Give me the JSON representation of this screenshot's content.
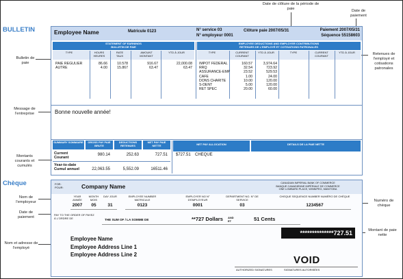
{
  "bulletin": {
    "title": "BULLETIN",
    "callouts": {
      "closing_date": "Date de clôture de la période de paie",
      "pay_date": "Date de paiement",
      "bulletin_de_paie": "Bulletin de paie",
      "retenues": "Retenues de l'employé et cotisations patronales",
      "message": "Message de l'entreprise",
      "montants": "Montants courants et cumulés"
    },
    "header": {
      "employee_name": "Employee Name",
      "matricule": "Matricule  0123",
      "service": "N° service 03",
      "employeur": "N° employeur 0001",
      "cloture": "Clôture paie  2007/05/31",
      "paiement": "Paiement 2007/05/31",
      "sequence": "Séquence 55158603"
    },
    "earnings": {
      "title1": "STATEMENT OF EARNINGS",
      "title2": "BULLETIN DE PAIE",
      "headers": [
        "TYPE",
        "HOURS HEURES",
        "RATE TAUX",
        "AMOUNT MONTANT",
        "YTD À JOUR"
      ],
      "rows": [
        {
          "type": "PAIE REGULIER",
          "hours": "86.66",
          "rate": "10.578",
          "amount": "916.67",
          "ytd": "22,000.08"
        },
        {
          "type": "AUTRE",
          "hours": "4.00",
          "rate": "15.867",
          "amount": "63.47",
          "ytd": "63.47"
        }
      ]
    },
    "deductions": {
      "title1": "EMPLOYEE DEDUCTIONS AND EMPLOYER CONTRIBUTIONS",
      "title2": "RETENUES DE L'EMPLOYÉ ET COTISATIONS PATRONALES",
      "headers": [
        "TYPE",
        "CURRENT COURANT",
        "YTD À JOUR",
        "TYPE",
        "CURRENT COURANT",
        "YTD À JOUR"
      ],
      "rows": [
        {
          "type": "IMPOT FEDERAL",
          "current": "160.57",
          "ytd": "3,974.64"
        },
        {
          "type": "RRQ",
          "current": "32.54",
          "ytd": "723.92"
        },
        {
          "type": "ASSURANCE-EMP",
          "current": "23.52",
          "ytd": "529.53"
        },
        {
          "type": "CAFE",
          "current": "1.00",
          "ytd": "24.00"
        },
        {
          "type": "DONS CHARITE",
          "current": "10.00",
          "ytd": "120.00"
        },
        {
          "type": "S-DENT",
          "current": "5.00",
          "ytd": "120.00"
        },
        {
          "type": "RET SPEC",
          "current": "20.00",
          "ytd": "60.00"
        }
      ]
    },
    "message": "Bonne nouvelle année!",
    "summary": {
      "headers": [
        "SUMMARY SOMMAIRE",
        "GROSS PAY PAIE BRUTE",
        "DEDUCTIONS RETENUES",
        "NET PAY PAIE NETTE",
        "NET PAY ALLOCATION",
        "DETAILS DE LA PAIE NETTE"
      ],
      "current_label1": "Current",
      "current_label2": "Courant",
      "current": {
        "gross": "980.14",
        "deductions": "252.63",
        "net": "727.51"
      },
      "ytd_label1": "Year-to-date",
      "ytd_label2": "Cumul annuel",
      "ytd": {
        "gross": "22,063.55",
        "deductions": "5,552.09",
        "net": "16511.46"
      },
      "allocation_amount": "$727.51",
      "allocation_type": "CHEQUE"
    }
  },
  "cheque": {
    "title": "Chèque",
    "callouts": {
      "nom_employeur": "Nom de l'employeur",
      "date_paiement": "Date de paiement",
      "nom_adresse": "Nom et adresse de l'employé",
      "numero_cheque": "Numéro de chèque",
      "montant_paie": "Montant de paie nette"
    },
    "for_label": "FOR: POUR:",
    "company_name": "Company Name",
    "bank": [
      "CANADIAN IMPERIAL BANK OF COMMERCE",
      "BANQUE CANADIENNE IMPÉRIALE DE COMMERCE",
      "ONE LOMBARD PLACE, WINNIPEG, MANITOBA"
    ],
    "date_headers": [
      "YEAR ANNÉE",
      "MONTH MOIS",
      "DAY JOUR"
    ],
    "date_values": [
      "2007",
      "05",
      "31"
    ],
    "employee_number_label": "EMPLOYEE NUMBER MATRICULE",
    "employee_number": "0123",
    "employer_number_label": "EMPLOYER NO N° D'EMPLOYEUR",
    "employer_number": "0001",
    "department_label": "DEPARTMENT NO. N° DE SERVICE",
    "department": "03",
    "sequence_label": "CHEQUE SEQUENCE NUMBER NUMÉRO DE CHÈQUE",
    "sequence": "1234567",
    "pay_to_label": "PAY TO THE ORDER OF PAYEZ À L'ORDRE DE",
    "sum_label": "THE SUM OF / LA SOMME DE",
    "amount_words": "**727 Dollars",
    "and_label": "AND ET",
    "cents": "51 Cents",
    "amount": "**************727.51",
    "employee_lines": [
      "Employee Name",
      "Employee Address Line 1",
      "Employee Address Line 2"
    ],
    "void": "VOID",
    "authorized": "AUTHORIZED SIGNATURES",
    "signatures": "SIGNATURES AUTORISÉES"
  }
}
